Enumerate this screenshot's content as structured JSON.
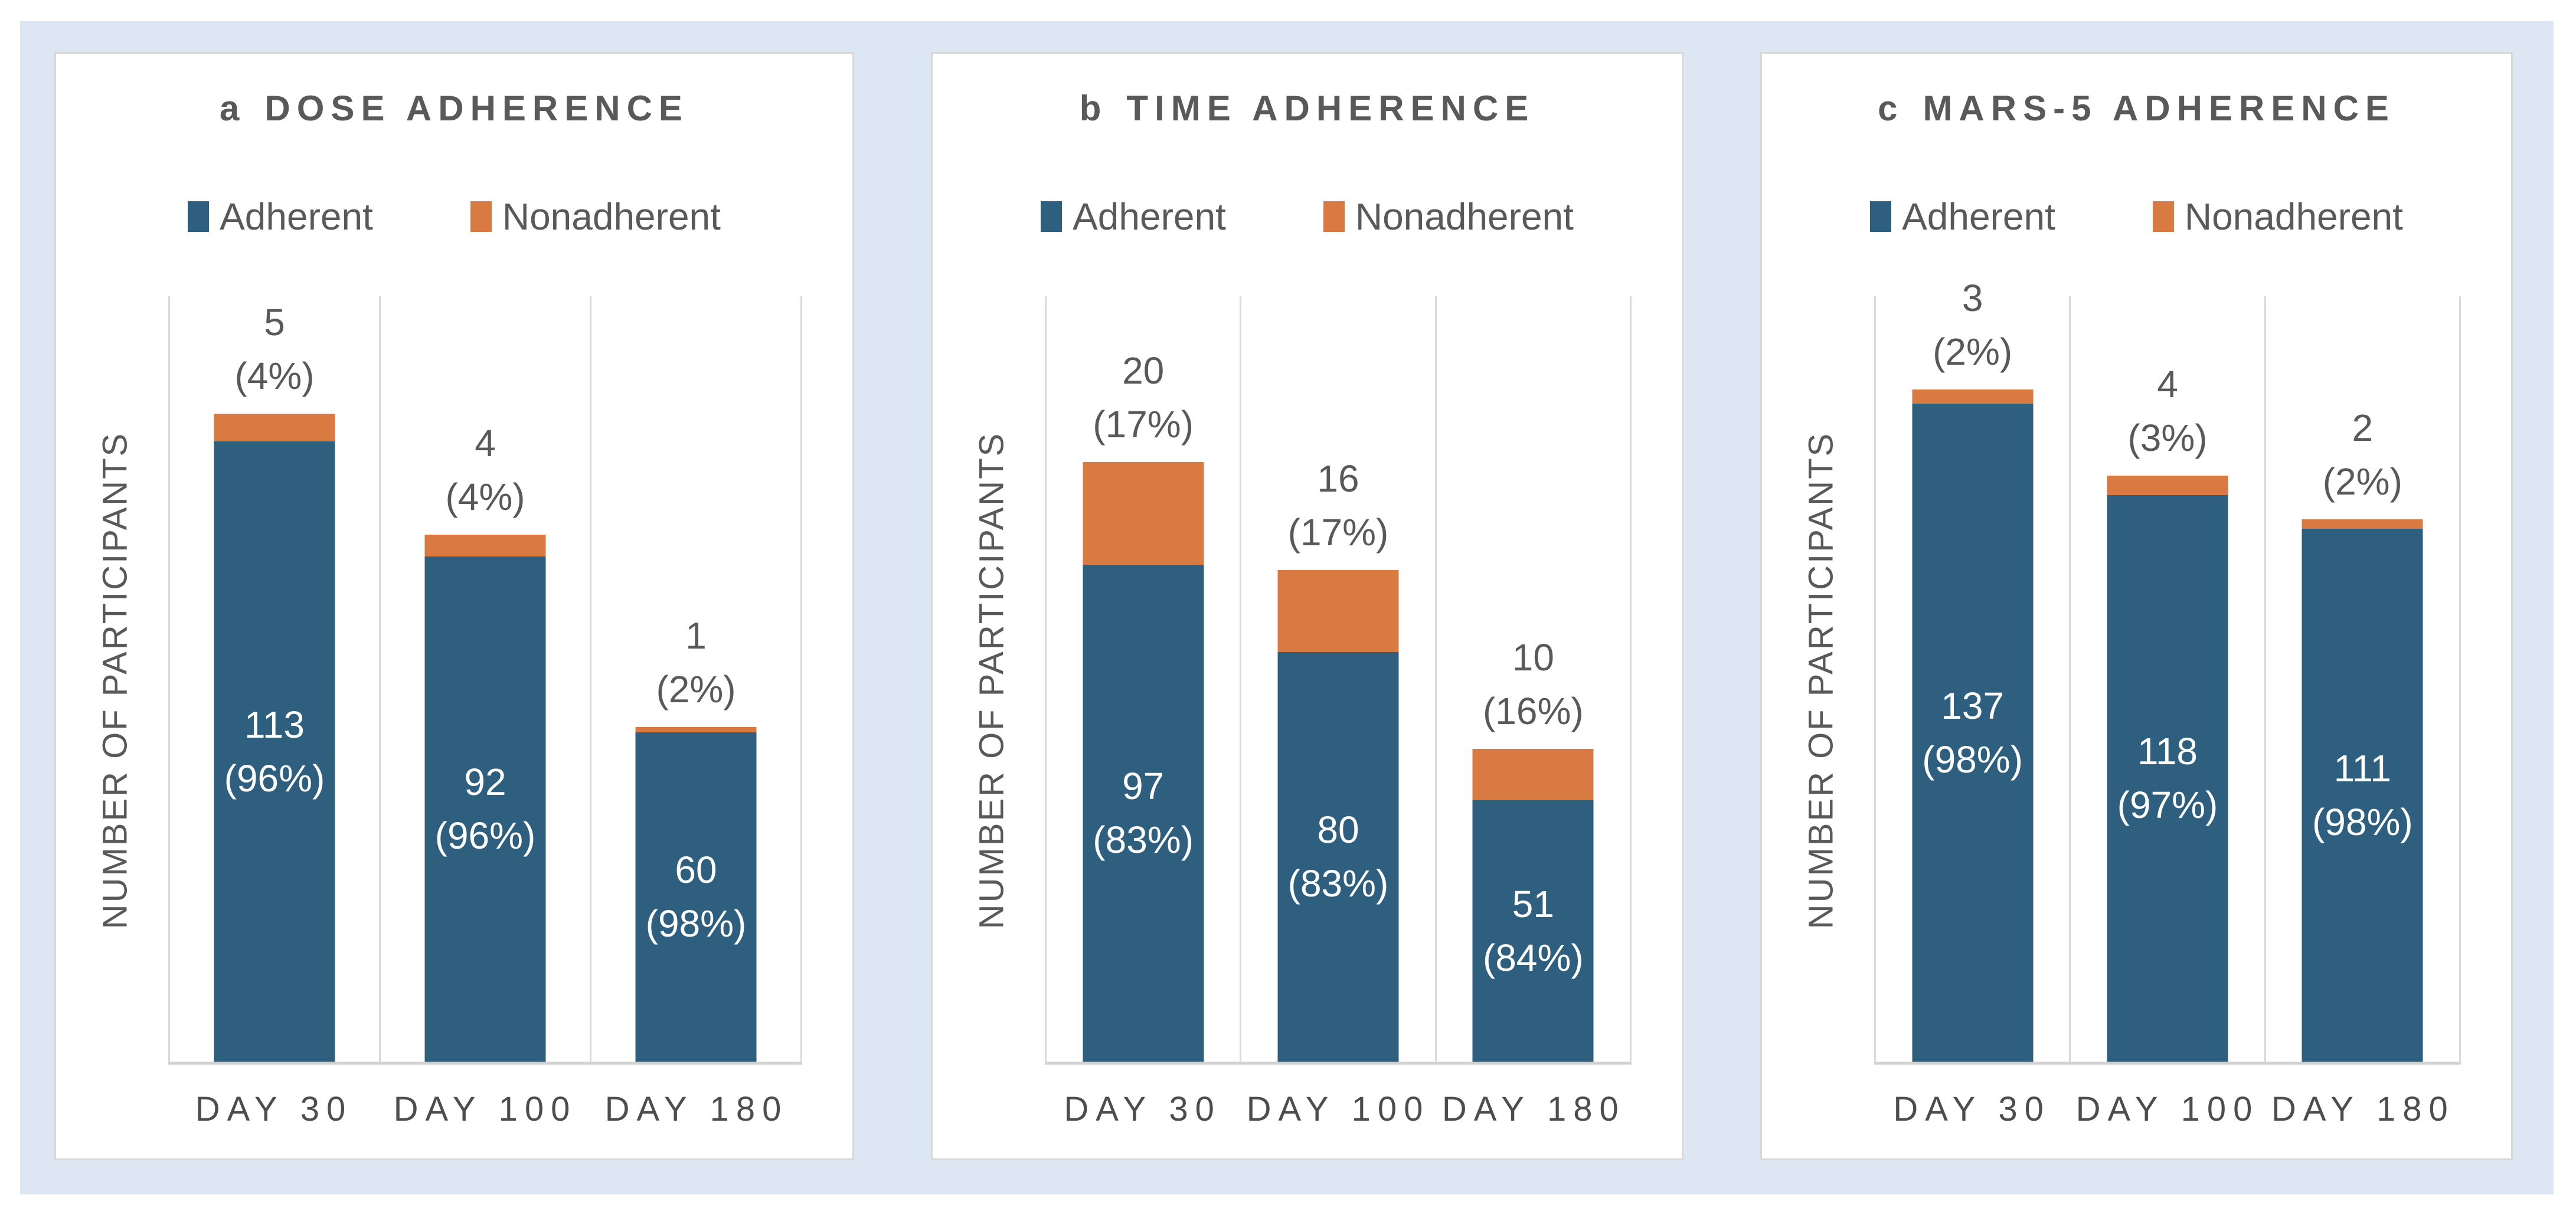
{
  "colors": {
    "adherent": "#2F5F7E",
    "nonadherent": "#D97A42",
    "text": "#595959",
    "axis_line": "#D9D9D9",
    "card_border": "#D8D8D8",
    "canvas_background": "#DDE6F3",
    "card_background": "#FFFFFF",
    "inside_label_text": "#FFFFFF"
  },
  "legend": {
    "adherent_label": "Adherent",
    "nonadherent_label": "Nonadherent"
  },
  "chart_data": [
    {
      "type": "bar",
      "stacked": true,
      "panel_label": "a",
      "title": "DOSE ADHERENCE",
      "ylabel": "NUMBER OF PARTICIPANTS",
      "categories": [
        "DAY 30",
        "DAY 100",
        "DAY 180"
      ],
      "series": [
        {
          "name": "Adherent",
          "values": [
            113,
            92,
            60
          ]
        },
        {
          "name": "Nonadherent",
          "values": [
            5,
            4,
            1
          ]
        }
      ],
      "adherent_labels": [
        {
          "count": "113",
          "pct": "(96%)"
        },
        {
          "count": "92",
          "pct": "(96%)"
        },
        {
          "count": "60",
          "pct": "(98%)"
        }
      ],
      "nonadherent_labels": [
        {
          "count": "5",
          "pct": "(4%)"
        },
        {
          "count": "4",
          "pct": "(4%)"
        },
        {
          "count": "1",
          "pct": "(2%)"
        }
      ],
      "ylim": [
        0,
        140
      ],
      "grid": "vertical-category-separators",
      "legend_position": "top"
    },
    {
      "type": "bar",
      "stacked": true,
      "panel_label": "b",
      "title": "TIME ADHERENCE",
      "ylabel": "NUMBER OF PARTICIPANTS",
      "categories": [
        "DAY 30",
        "DAY 100",
        "DAY 180"
      ],
      "series": [
        {
          "name": "Adherent",
          "values": [
            97,
            80,
            51
          ]
        },
        {
          "name": "Nonadherent",
          "values": [
            20,
            16,
            10
          ]
        }
      ],
      "adherent_labels": [
        {
          "count": "97",
          "pct": "(83%)"
        },
        {
          "count": "80",
          "pct": "(83%)"
        },
        {
          "count": "51",
          "pct": "(84%)"
        }
      ],
      "nonadherent_labels": [
        {
          "count": "20",
          "pct": "(17%)"
        },
        {
          "count": "16",
          "pct": "(17%)"
        },
        {
          "count": "10",
          "pct": "(16%)"
        }
      ],
      "ylim": [
        0,
        150
      ],
      "grid": "vertical-category-separators",
      "legend_position": "top"
    },
    {
      "type": "bar",
      "stacked": true,
      "panel_label": "c",
      "title": "MARS-5 ADHERENCE",
      "ylabel": "NUMBER OF PARTICIPANTS",
      "categories": [
        "DAY 30",
        "DAY 100",
        "DAY 180"
      ],
      "series": [
        {
          "name": "Adherent",
          "values": [
            137,
            118,
            111
          ]
        },
        {
          "name": "Nonadherent",
          "values": [
            3,
            4,
            2
          ]
        }
      ],
      "adherent_labels": [
        {
          "count": "137",
          "pct": "(98%)"
        },
        {
          "count": "118",
          "pct": "(97%)"
        },
        {
          "count": "111",
          "pct": "(98%)"
        }
      ],
      "nonadherent_labels": [
        {
          "count": "3",
          "pct": "(2%)"
        },
        {
          "count": "4",
          "pct": "(3%)"
        },
        {
          "count": "2",
          "pct": "(2%)"
        }
      ],
      "ylim": [
        0,
        160
      ],
      "grid": "vertical-category-separators",
      "legend_position": "top"
    }
  ]
}
